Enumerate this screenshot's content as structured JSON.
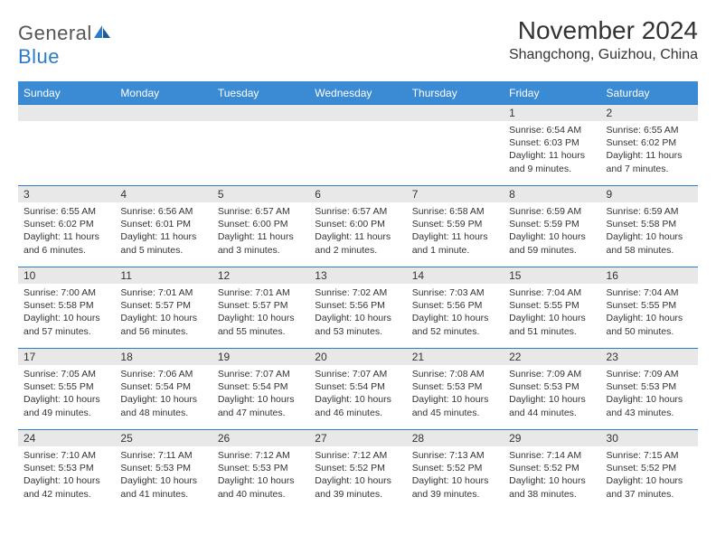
{
  "brand": {
    "name_gray": "General",
    "name_blue": "Blue"
  },
  "header": {
    "month_title": "November 2024",
    "location": "Shangchong, Guizhou, China"
  },
  "styling": {
    "header_bg": "#3b8bd4",
    "header_text": "#ffffff",
    "daynum_bg": "#e8e8e8",
    "row_border": "#2c7bc9",
    "body_text": "#333333",
    "logo_gray": "#555555",
    "logo_blue": "#2c7bc9",
    "month_title_fontsize": 28,
    "location_fontsize": 16,
    "weekday_fontsize": 12,
    "cell_fontsize": 10.5
  },
  "weekdays": [
    "Sunday",
    "Monday",
    "Tuesday",
    "Wednesday",
    "Thursday",
    "Friday",
    "Saturday"
  ],
  "weeks": [
    [
      {
        "n": "",
        "sr": "",
        "ss": "",
        "dl": ""
      },
      {
        "n": "",
        "sr": "",
        "ss": "",
        "dl": ""
      },
      {
        "n": "",
        "sr": "",
        "ss": "",
        "dl": ""
      },
      {
        "n": "",
        "sr": "",
        "ss": "",
        "dl": ""
      },
      {
        "n": "",
        "sr": "",
        "ss": "",
        "dl": ""
      },
      {
        "n": "1",
        "sr": "Sunrise: 6:54 AM",
        "ss": "Sunset: 6:03 PM",
        "dl": "Daylight: 11 hours and 9 minutes."
      },
      {
        "n": "2",
        "sr": "Sunrise: 6:55 AM",
        "ss": "Sunset: 6:02 PM",
        "dl": "Daylight: 11 hours and 7 minutes."
      }
    ],
    [
      {
        "n": "3",
        "sr": "Sunrise: 6:55 AM",
        "ss": "Sunset: 6:02 PM",
        "dl": "Daylight: 11 hours and 6 minutes."
      },
      {
        "n": "4",
        "sr": "Sunrise: 6:56 AM",
        "ss": "Sunset: 6:01 PM",
        "dl": "Daylight: 11 hours and 5 minutes."
      },
      {
        "n": "5",
        "sr": "Sunrise: 6:57 AM",
        "ss": "Sunset: 6:00 PM",
        "dl": "Daylight: 11 hours and 3 minutes."
      },
      {
        "n": "6",
        "sr": "Sunrise: 6:57 AM",
        "ss": "Sunset: 6:00 PM",
        "dl": "Daylight: 11 hours and 2 minutes."
      },
      {
        "n": "7",
        "sr": "Sunrise: 6:58 AM",
        "ss": "Sunset: 5:59 PM",
        "dl": "Daylight: 11 hours and 1 minute."
      },
      {
        "n": "8",
        "sr": "Sunrise: 6:59 AM",
        "ss": "Sunset: 5:59 PM",
        "dl": "Daylight: 10 hours and 59 minutes."
      },
      {
        "n": "9",
        "sr": "Sunrise: 6:59 AM",
        "ss": "Sunset: 5:58 PM",
        "dl": "Daylight: 10 hours and 58 minutes."
      }
    ],
    [
      {
        "n": "10",
        "sr": "Sunrise: 7:00 AM",
        "ss": "Sunset: 5:58 PM",
        "dl": "Daylight: 10 hours and 57 minutes."
      },
      {
        "n": "11",
        "sr": "Sunrise: 7:01 AM",
        "ss": "Sunset: 5:57 PM",
        "dl": "Daylight: 10 hours and 56 minutes."
      },
      {
        "n": "12",
        "sr": "Sunrise: 7:01 AM",
        "ss": "Sunset: 5:57 PM",
        "dl": "Daylight: 10 hours and 55 minutes."
      },
      {
        "n": "13",
        "sr": "Sunrise: 7:02 AM",
        "ss": "Sunset: 5:56 PM",
        "dl": "Daylight: 10 hours and 53 minutes."
      },
      {
        "n": "14",
        "sr": "Sunrise: 7:03 AM",
        "ss": "Sunset: 5:56 PM",
        "dl": "Daylight: 10 hours and 52 minutes."
      },
      {
        "n": "15",
        "sr": "Sunrise: 7:04 AM",
        "ss": "Sunset: 5:55 PM",
        "dl": "Daylight: 10 hours and 51 minutes."
      },
      {
        "n": "16",
        "sr": "Sunrise: 7:04 AM",
        "ss": "Sunset: 5:55 PM",
        "dl": "Daylight: 10 hours and 50 minutes."
      }
    ],
    [
      {
        "n": "17",
        "sr": "Sunrise: 7:05 AM",
        "ss": "Sunset: 5:55 PM",
        "dl": "Daylight: 10 hours and 49 minutes."
      },
      {
        "n": "18",
        "sr": "Sunrise: 7:06 AM",
        "ss": "Sunset: 5:54 PM",
        "dl": "Daylight: 10 hours and 48 minutes."
      },
      {
        "n": "19",
        "sr": "Sunrise: 7:07 AM",
        "ss": "Sunset: 5:54 PM",
        "dl": "Daylight: 10 hours and 47 minutes."
      },
      {
        "n": "20",
        "sr": "Sunrise: 7:07 AM",
        "ss": "Sunset: 5:54 PM",
        "dl": "Daylight: 10 hours and 46 minutes."
      },
      {
        "n": "21",
        "sr": "Sunrise: 7:08 AM",
        "ss": "Sunset: 5:53 PM",
        "dl": "Daylight: 10 hours and 45 minutes."
      },
      {
        "n": "22",
        "sr": "Sunrise: 7:09 AM",
        "ss": "Sunset: 5:53 PM",
        "dl": "Daylight: 10 hours and 44 minutes."
      },
      {
        "n": "23",
        "sr": "Sunrise: 7:09 AM",
        "ss": "Sunset: 5:53 PM",
        "dl": "Daylight: 10 hours and 43 minutes."
      }
    ],
    [
      {
        "n": "24",
        "sr": "Sunrise: 7:10 AM",
        "ss": "Sunset: 5:53 PM",
        "dl": "Daylight: 10 hours and 42 minutes."
      },
      {
        "n": "25",
        "sr": "Sunrise: 7:11 AM",
        "ss": "Sunset: 5:53 PM",
        "dl": "Daylight: 10 hours and 41 minutes."
      },
      {
        "n": "26",
        "sr": "Sunrise: 7:12 AM",
        "ss": "Sunset: 5:53 PM",
        "dl": "Daylight: 10 hours and 40 minutes."
      },
      {
        "n": "27",
        "sr": "Sunrise: 7:12 AM",
        "ss": "Sunset: 5:52 PM",
        "dl": "Daylight: 10 hours and 39 minutes."
      },
      {
        "n": "28",
        "sr": "Sunrise: 7:13 AM",
        "ss": "Sunset: 5:52 PM",
        "dl": "Daylight: 10 hours and 39 minutes."
      },
      {
        "n": "29",
        "sr": "Sunrise: 7:14 AM",
        "ss": "Sunset: 5:52 PM",
        "dl": "Daylight: 10 hours and 38 minutes."
      },
      {
        "n": "30",
        "sr": "Sunrise: 7:15 AM",
        "ss": "Sunset: 5:52 PM",
        "dl": "Daylight: 10 hours and 37 minutes."
      }
    ]
  ]
}
